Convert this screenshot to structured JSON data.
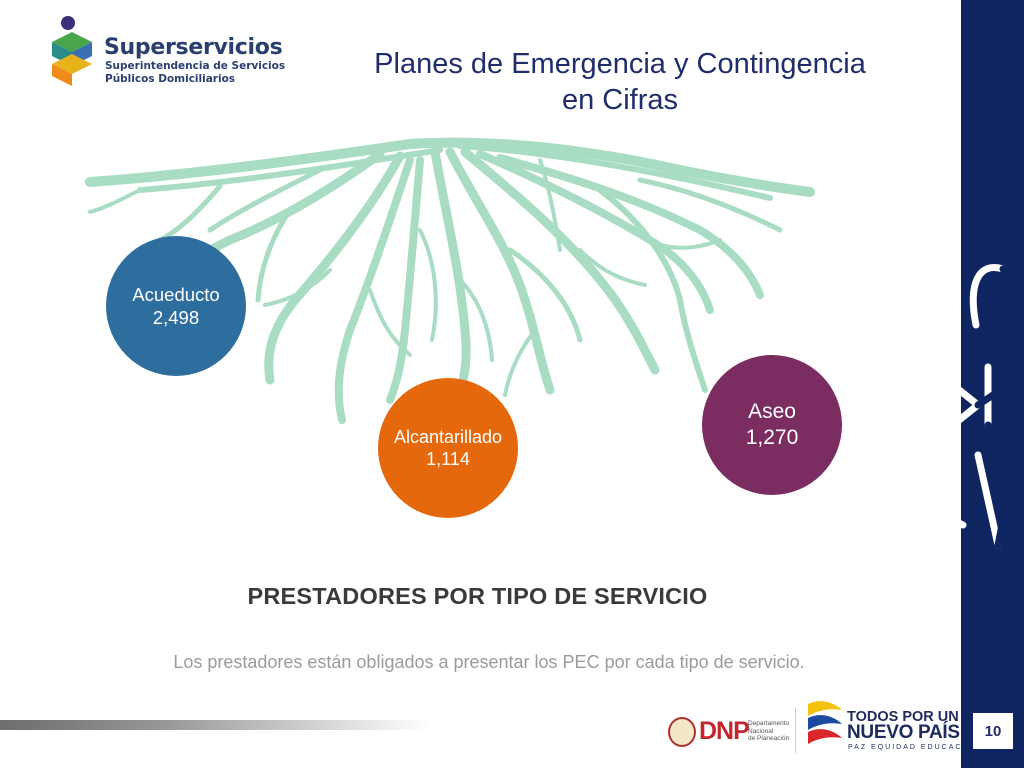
{
  "logo": {
    "name": "Superservicios",
    "subtitle_line1": "Superintendencia de Servicios",
    "subtitle_line2": "Públicos Domiciliarios"
  },
  "title": {
    "line1": "Planes de Emergencia y Contingencia",
    "line2": "en Cifras"
  },
  "services": [
    {
      "name": "Acueducto",
      "value": "2,498",
      "color": "#2e6e9e"
    },
    {
      "name": "Alcantarillado",
      "value": "1,114",
      "color": "#e5680d"
    },
    {
      "name": "Aseo",
      "value": "1,270",
      "color": "#7b2d62"
    }
  ],
  "subtitle": "PRESTADORES POR TIPO DE SERVICIO",
  "note": "Los prestadores están obligados a presentar los PEC por cada tipo de servicio.",
  "footer": {
    "dnp": "DNP",
    "dnp_sub_1": "Departamento",
    "dnp_sub_2": "Nacional",
    "dnp_sub_3": "de Planeación",
    "slogan_line1": "TODOS POR UN",
    "slogan_line2": "NUEVO PAÍS",
    "slogan_line3": "PAZ  EQUIDAD  EDUCACIÓN"
  },
  "page_number": "10",
  "colors": {
    "side_band": "#0e2562",
    "roots": "#a8dcc3",
    "title": "#1f2d6b"
  },
  "icons": [
    "superservicios-logo-icon",
    "roots-illustration",
    "colombia-shield-icon",
    "colombia-flag-mark-icon",
    "decorative-letters-icon"
  ]
}
